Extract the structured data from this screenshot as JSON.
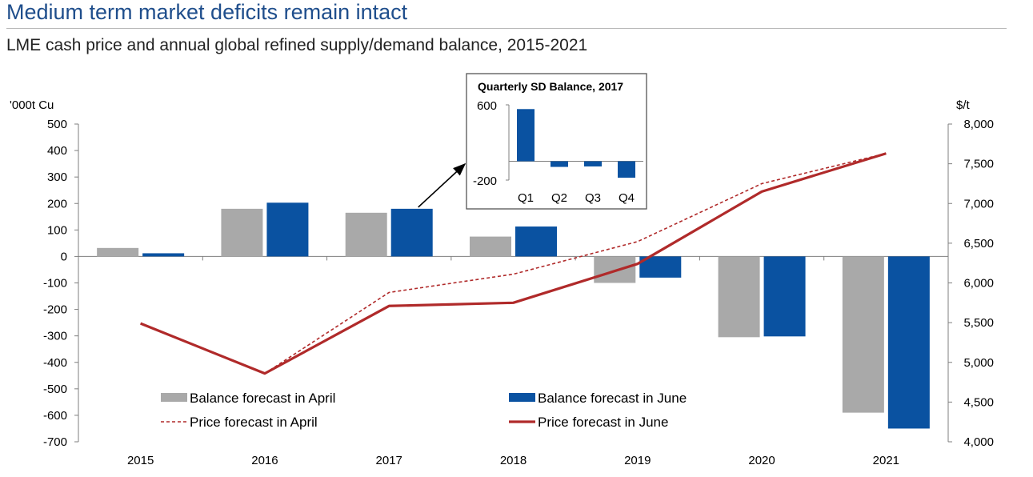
{
  "header": {
    "title": "Medium term market deficits remain intact",
    "subtitle": "LME cash price and annual global refined supply/demand balance, 2015-2021"
  },
  "colors": {
    "april_bar": "#a9a9a9",
    "june_bar": "#0a52a1",
    "price": "#b02a2a",
    "title": "#1f4e8c",
    "axis": "#7f7f7f"
  },
  "chart_data": [
    {
      "type": "bar",
      "title": "",
      "xlabel": "",
      "ylabel": "'000t Cu",
      "y2label": "$/t",
      "categories": [
        "2015",
        "2016",
        "2017",
        "2018",
        "2019",
        "2020",
        "2021"
      ],
      "ylim": [
        -700,
        500
      ],
      "y_ticks": [
        "500",
        "400",
        "300",
        "200",
        "100",
        "0",
        "-100",
        "-200",
        "-300",
        "-400",
        "-500",
        "-600",
        "-700"
      ],
      "y2lim": [
        4000,
        8000
      ],
      "y2_ticks": [
        "8,000",
        "7,500",
        "7,000",
        "6,500",
        "6,000",
        "5,500",
        "5,000",
        "4,500",
        "4,000"
      ],
      "grid": false,
      "legend_position": "bottom-center",
      "series": [
        {
          "name": "Balance forecast in April",
          "kind": "bar",
          "axis": "left",
          "values": [
            32,
            180,
            165,
            75,
            -100,
            -305,
            -590
          ]
        },
        {
          "name": "Balance forecast in June",
          "kind": "bar",
          "axis": "left",
          "values": [
            12,
            203,
            180,
            113,
            -80,
            -302,
            -650
          ]
        },
        {
          "name": "Price forecast in April",
          "kind": "line",
          "style": "dashed",
          "axis": "right",
          "values": [
            5490,
            4860,
            5880,
            6110,
            6520,
            7250,
            7630
          ]
        },
        {
          "name": "Price forecast in June",
          "kind": "line",
          "style": "solid",
          "axis": "right",
          "values": [
            5490,
            4860,
            5710,
            5750,
            6240,
            7150,
            7630
          ]
        }
      ]
    },
    {
      "type": "bar",
      "title": "Quarterly SD Balance, 2017",
      "categories": [
        "Q1",
        "Q2",
        "Q3",
        "Q4"
      ],
      "values": [
        555,
        -60,
        -55,
        -175
      ],
      "ylim": [
        -200,
        600
      ],
      "y_ticks": [
        "600",
        "-200"
      ],
      "annotation": "inset-arrow-to-2017-june-bar"
    }
  ]
}
